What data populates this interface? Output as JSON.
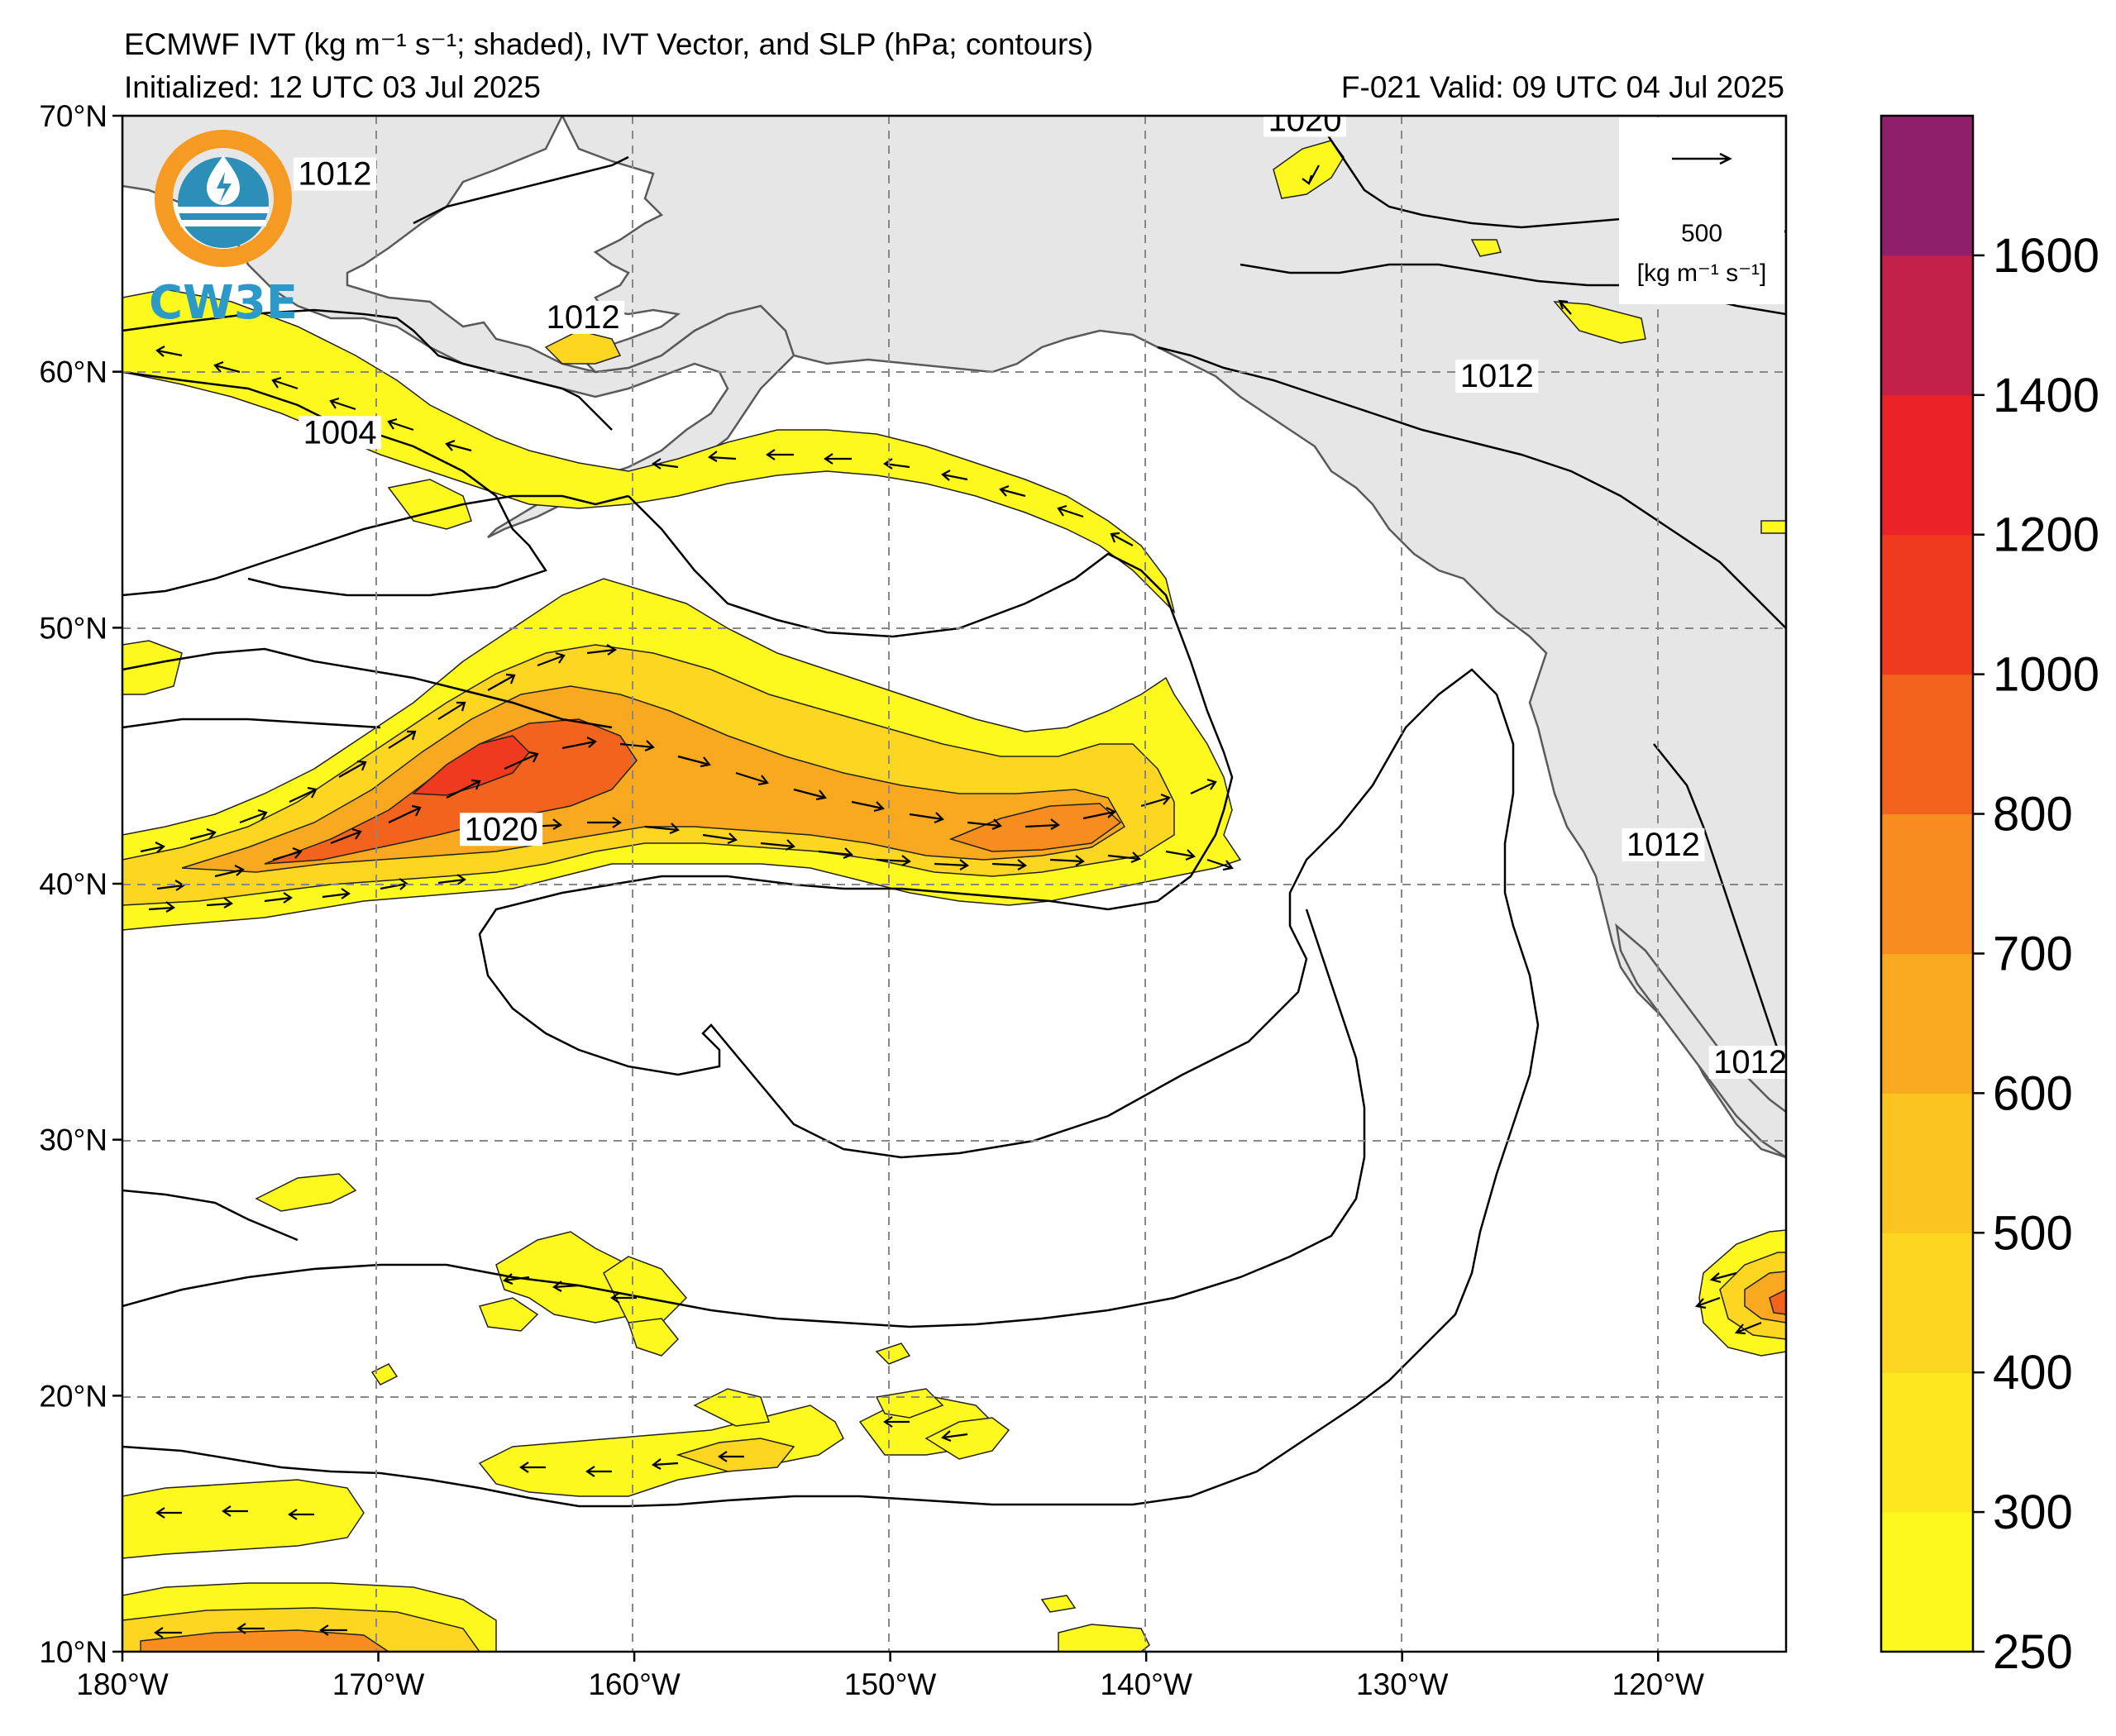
{
  "title": {
    "line1": "ECMWF IVT (kg m⁻¹ s⁻¹; shaded), IVT Vector, and SLP (hPa; contours)",
    "line2_left": "Initialized: 12 UTC 03 Jul 2025",
    "line2_right": "F-021  Valid: 09 UTC 04 Jul 2025"
  },
  "logo": {
    "text": "CW3E"
  },
  "map": {
    "extent": {
      "lon": [
        -180,
        -115
      ],
      "lat": [
        10,
        70
      ]
    },
    "lon_ticks": [
      {
        "value": -180,
        "label": "180°W"
      },
      {
        "value": -170,
        "label": "170°W"
      },
      {
        "value": -160,
        "label": "160°W"
      },
      {
        "value": -150,
        "label": "150°W"
      },
      {
        "value": -140,
        "label": "140°W"
      },
      {
        "value": -130,
        "label": "130°W"
      },
      {
        "value": -120,
        "label": "120°W"
      }
    ],
    "lat_ticks": [
      {
        "value": 10,
        "label": "10°N"
      },
      {
        "value": 20,
        "label": "20°N"
      },
      {
        "value": 30,
        "label": "30°N"
      },
      {
        "value": 40,
        "label": "40°N"
      },
      {
        "value": 50,
        "label": "50°N"
      },
      {
        "value": 60,
        "label": "60°N"
      },
      {
        "value": 70,
        "label": "70°N"
      }
    ],
    "contour_labels": [
      {
        "text": "1012",
        "lon": -162,
        "lat": 61.8
      },
      {
        "text": "1004",
        "lon": -171.5,
        "lat": 57.3
      },
      {
        "text": "1012",
        "lon": -171.7,
        "lat": 67.4
      },
      {
        "text": "1020",
        "lon": -165.2,
        "lat": 41.8
      },
      {
        "text": "1020",
        "lon": -133.8,
        "lat": 69.5
      },
      {
        "text": "1012",
        "lon": -126.3,
        "lat": 59.5
      },
      {
        "text": "1012",
        "lon": -119.8,
        "lat": 41.2
      },
      {
        "text": "1012",
        "lon": -116.4,
        "lat": 32.7
      }
    ],
    "reference_vector": {
      "value": "500",
      "units": "[kg m⁻¹ s⁻¹]"
    }
  },
  "colorbar": {
    "levels": [
      250,
      300,
      400,
      500,
      600,
      700,
      800,
      1000,
      1200,
      1400,
      1600,
      1800
    ],
    "colors": [
      "#fdf91f",
      "#fde820",
      "#fcd620",
      "#fbc421",
      "#f9a920",
      "#f78c1f",
      "#f2641e",
      "#ef3a20",
      "#eb2227",
      "#c3214a",
      "#8f1f6a",
      "#6a1b95"
    ],
    "tick_labels": [
      "250",
      "300",
      "400",
      "500",
      "600",
      "700",
      "800",
      "1000",
      "1200",
      "1400",
      "1600"
    ]
  }
}
